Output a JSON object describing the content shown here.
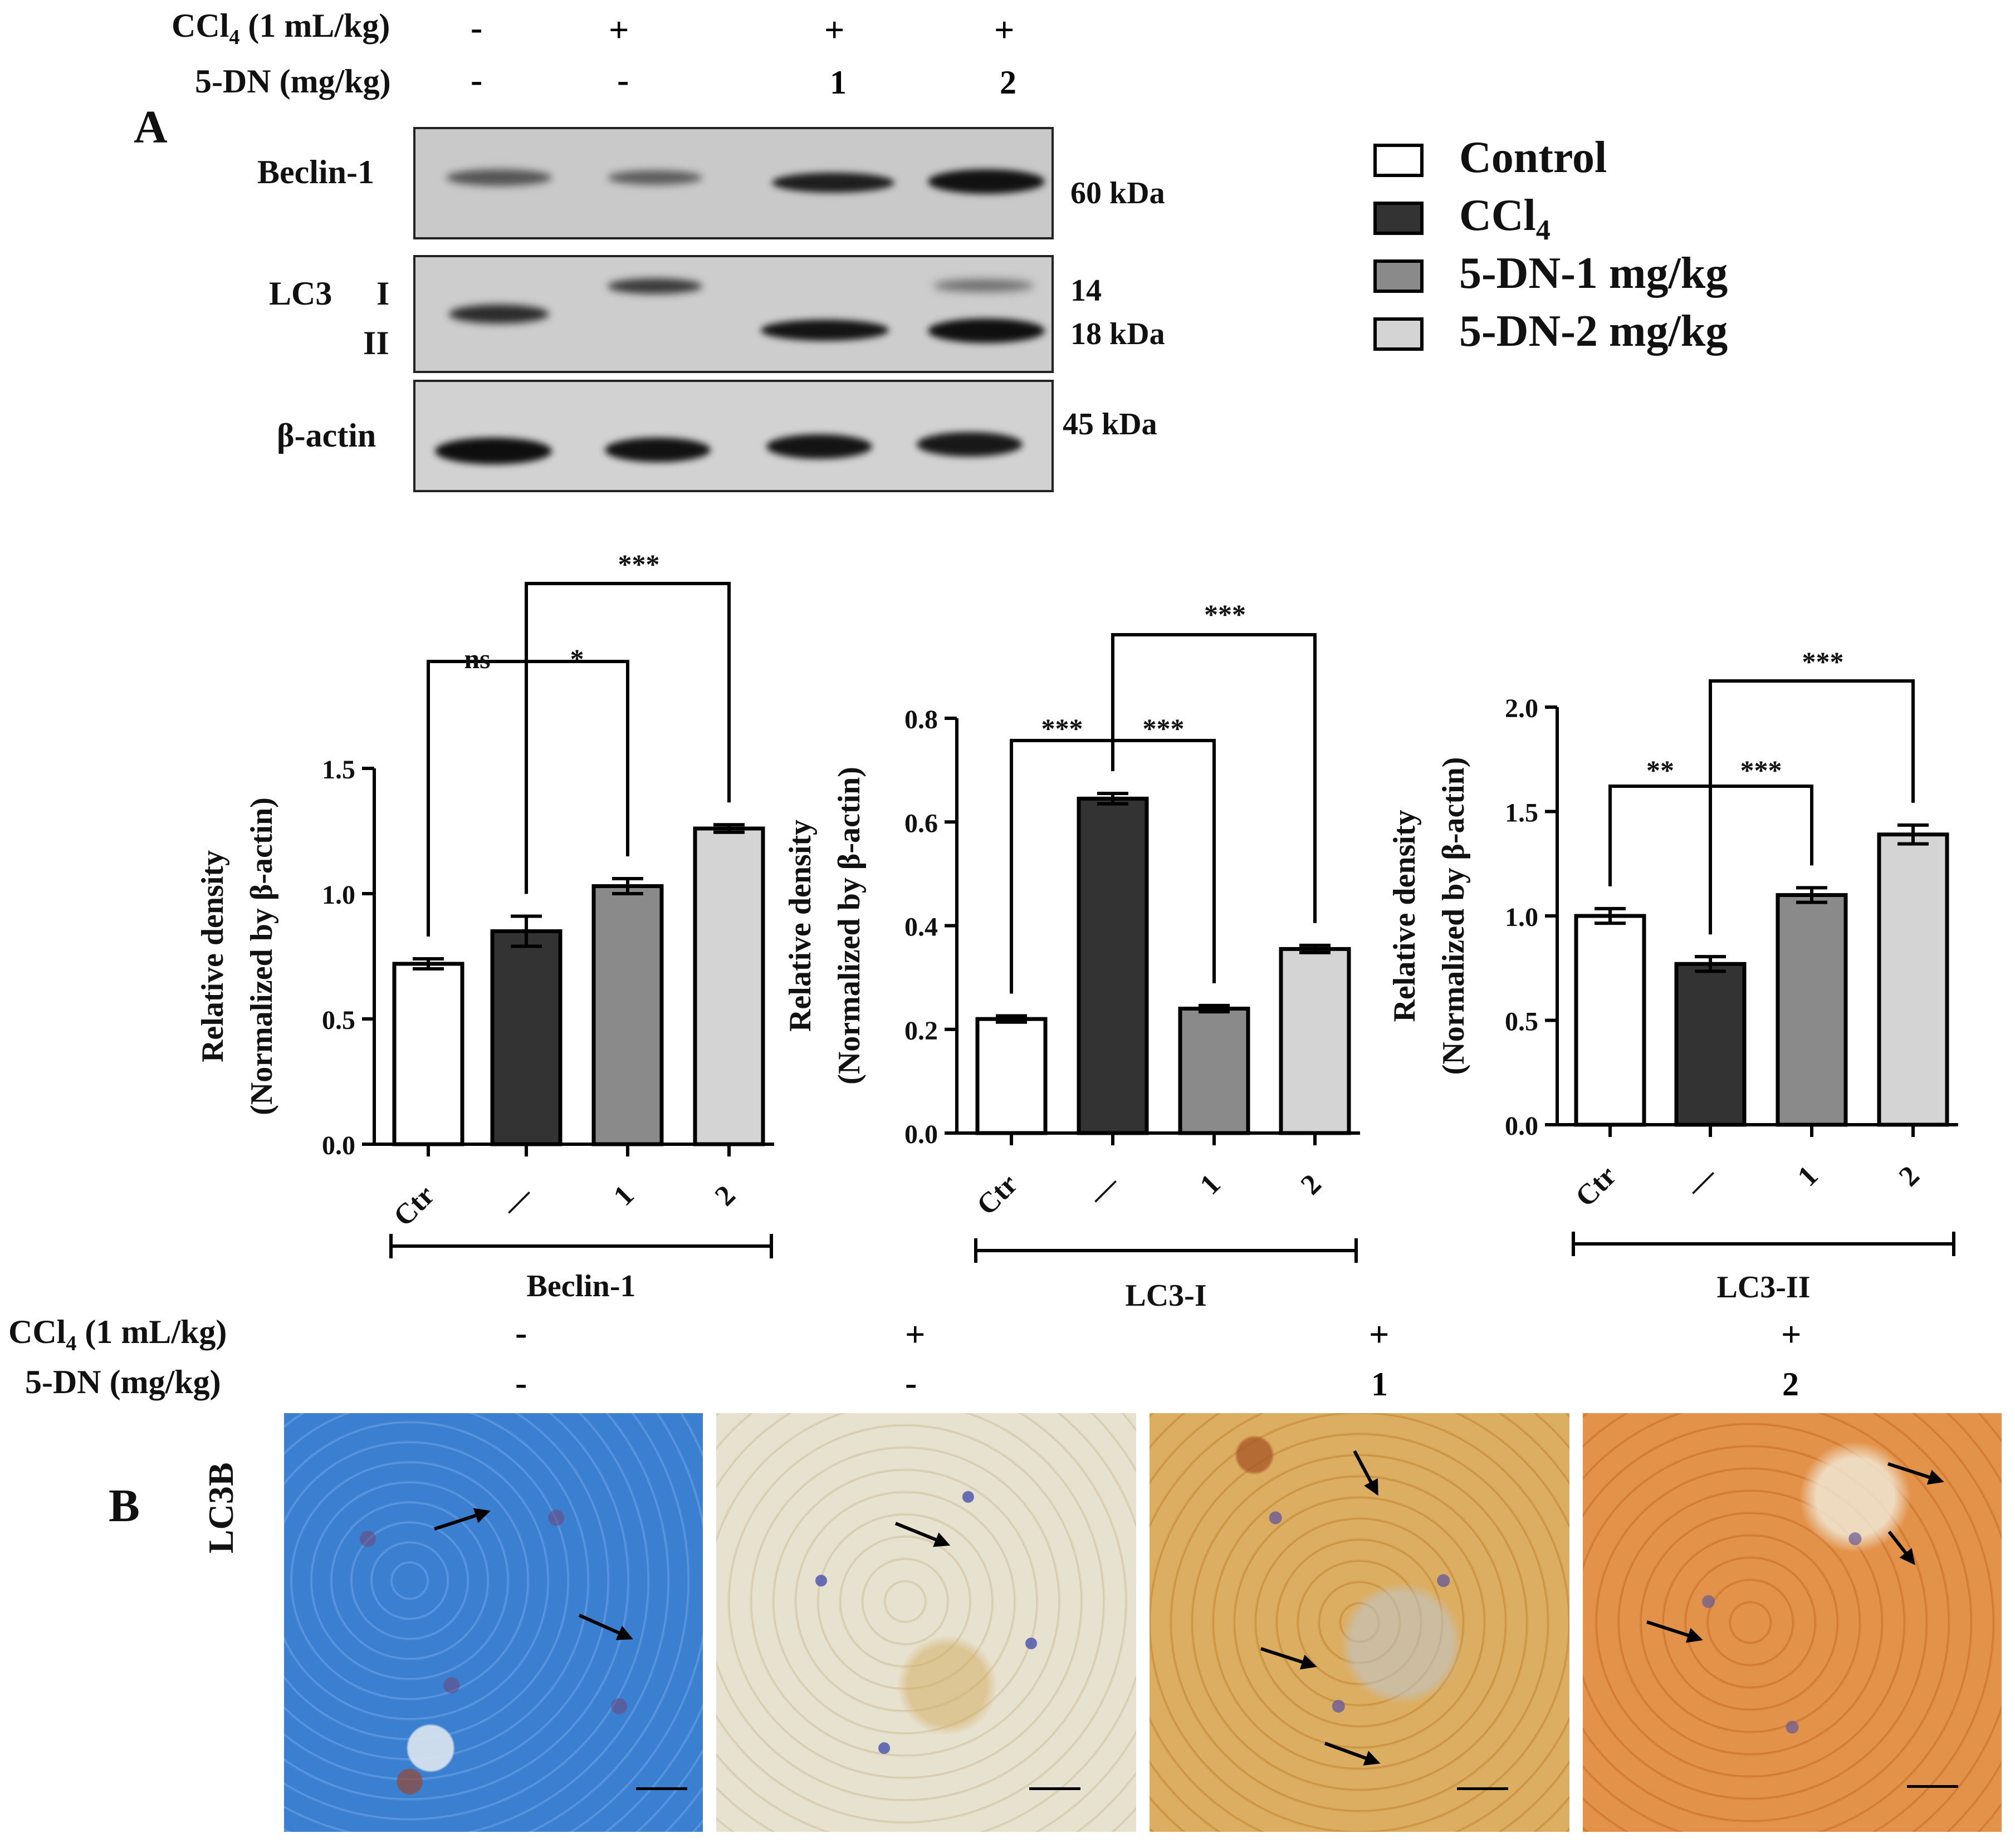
{
  "panel_a": {
    "letter": "A",
    "header": {
      "ccl4_label_pre": "CCl",
      "ccl4_label_sub": "4",
      "ccl4_label_post": " (1 mL/kg)",
      "dn_label": "5-DN (mg/kg)",
      "ccl4_values": [
        "-",
        "+",
        "+",
        "+"
      ],
      "dn_values": [
        "-",
        "-",
        "1",
        "2"
      ]
    },
    "blots": {
      "beclin_label": "Beclin-1",
      "beclin_kda": "60 kDa",
      "lc3_label": "LC3",
      "lc3_i": "I",
      "lc3_ii": "II",
      "lc3_kda_top": "14",
      "lc3_kda_bottom": "18 kDa",
      "actin_label": "β-actin",
      "actin_kda": "45 kDa"
    },
    "legend": {
      "items": [
        {
          "label": "Control",
          "color": "#ffffff"
        },
        {
          "label": "CCl",
          "sub": "4",
          "color": "#333333"
        },
        {
          "label": "5-DN-1 mg/kg",
          "color": "#8a8a8a"
        },
        {
          "label": "5-DN-2 mg/kg",
          "color": "#d4d4d4"
        }
      ]
    }
  },
  "chart_data": [
    {
      "type": "bar",
      "title": "",
      "group_label": "Beclin-1",
      "categories": [
        "Ctr",
        "—",
        "1",
        "2"
      ],
      "values": [
        0.72,
        0.85,
        1.03,
        1.26
      ],
      "errors": [
        0.02,
        0.06,
        0.03,
        0.015
      ],
      "colors": [
        "#ffffff",
        "#333333",
        "#8a8a8a",
        "#d4d4d4"
      ],
      "ylabel": "Relative density",
      "ylabel2": "(Normalized by β-actin)",
      "ylim": [
        0,
        1.5
      ],
      "yticks": [
        0.0,
        0.5,
        1.0,
        1.5
      ],
      "ytick_labels": [
        "0.0",
        "0.5",
        "1.0",
        "1.5"
      ],
      "significance": [
        {
          "from": 0,
          "to": 1,
          "label": "ns",
          "level": 1
        },
        {
          "from": 1,
          "to": 2,
          "label": "*",
          "level": 1
        },
        {
          "from": 1,
          "to": 3,
          "label": "***",
          "level": 2
        }
      ]
    },
    {
      "type": "bar",
      "title": "",
      "group_label": "LC3-I",
      "categories": [
        "Ctr",
        "—",
        "1",
        "2"
      ],
      "values": [
        0.22,
        0.645,
        0.24,
        0.355
      ],
      "errors": [
        0.006,
        0.01,
        0.006,
        0.007
      ],
      "colors": [
        "#ffffff",
        "#333333",
        "#8a8a8a",
        "#d4d4d4"
      ],
      "ylabel": "Relative density",
      "ylabel2": "(Normalized by β-actin)",
      "ylim": [
        0,
        0.8
      ],
      "yticks": [
        0.0,
        0.2,
        0.4,
        0.6,
        0.8
      ],
      "ytick_labels": [
        "0.0",
        "0.2",
        "0.4",
        "0.6",
        "0.8"
      ],
      "significance": [
        {
          "from": 0,
          "to": 1,
          "label": "***",
          "level": 1
        },
        {
          "from": 1,
          "to": 2,
          "label": "***",
          "level": 1
        },
        {
          "from": 1,
          "to": 3,
          "label": "***",
          "level": 2
        }
      ]
    },
    {
      "type": "bar",
      "title": "",
      "group_label": "LC3-II",
      "categories": [
        "Ctr",
        "—",
        "1",
        "2"
      ],
      "values": [
        1.0,
        0.77,
        1.1,
        1.39
      ],
      "errors": [
        0.035,
        0.035,
        0.035,
        0.045
      ],
      "colors": [
        "#ffffff",
        "#333333",
        "#8a8a8a",
        "#d4d4d4"
      ],
      "ylabel": "Relative density",
      "ylabel2": "(Normalized by β-actin)",
      "ylim": [
        0,
        2.0
      ],
      "yticks": [
        0.0,
        0.5,
        1.0,
        1.5,
        2.0
      ],
      "ytick_labels": [
        "0.0",
        "0.5",
        "1.0",
        "1.5",
        "2.0"
      ],
      "significance": [
        {
          "from": 0,
          "to": 1,
          "label": "**",
          "level": 1
        },
        {
          "from": 1,
          "to": 2,
          "label": "***",
          "level": 1
        },
        {
          "from": 1,
          "to": 3,
          "label": "***",
          "level": 2
        }
      ]
    }
  ],
  "panel_b": {
    "letter": "B",
    "row_label": "LC3B",
    "header": {
      "ccl4_label_pre": "CCl",
      "ccl4_label_sub": "4",
      "ccl4_label_post": " (1 mL/kg)",
      "dn_label": "5-DN (mg/kg)",
      "ccl4_values": [
        "-",
        "+",
        "+",
        "+"
      ],
      "dn_values": [
        "-",
        "-",
        "1",
        "2"
      ]
    }
  }
}
